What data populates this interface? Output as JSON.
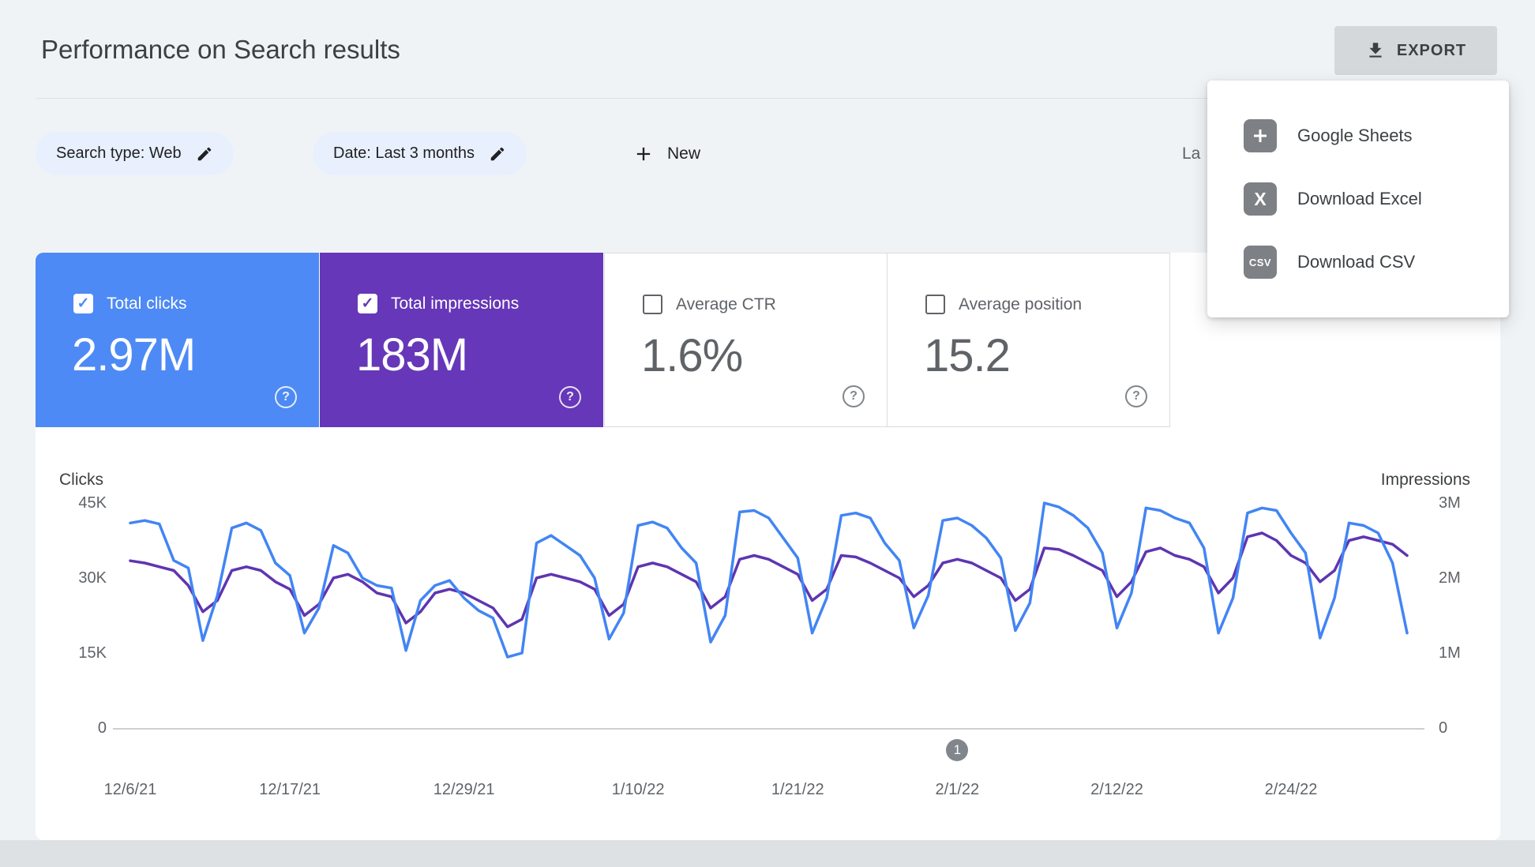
{
  "header": {
    "title": "Performance on Search results",
    "export_label": "EXPORT",
    "export_icon": "download-icon"
  },
  "export_menu": {
    "items": [
      {
        "label": "Google Sheets",
        "icon": "google-sheets-icon"
      },
      {
        "label": "Download Excel",
        "icon": "excel-icon"
      },
      {
        "label": "Download CSV",
        "icon": "csv-icon"
      }
    ]
  },
  "filters": {
    "search_type_chip": "Search type: Web",
    "date_chip": "Date: Last 3 months",
    "chip_edit_icon": "edit-pencil-icon",
    "new_label": "New",
    "new_icon": "plus-icon",
    "last_updated_partial": "La"
  },
  "metrics": [
    {
      "label": "Total clicks",
      "value": "2.97M",
      "checked": true,
      "color": "#4d8af5"
    },
    {
      "label": "Total impressions",
      "value": "183M",
      "checked": true,
      "color": "#6637b8"
    },
    {
      "label": "Average CTR",
      "value": "1.6%",
      "checked": false
    },
    {
      "label": "Average position",
      "value": "15.2",
      "checked": false
    }
  ],
  "chart_data": {
    "type": "line",
    "start_date": "12/6/21",
    "frequency": "daily",
    "left_axis": {
      "label": "Clicks",
      "ticks": [
        "45K",
        "30K",
        "15K",
        "0"
      ],
      "max": 45000,
      "min": 0
    },
    "right_axis": {
      "label": "Impressions",
      "ticks": [
        "3M",
        "2M",
        "1M",
        "0"
      ],
      "max": 3000000,
      "min": 0
    },
    "x_ticks": [
      {
        "label": "12/6/21",
        "index": 0
      },
      {
        "label": "12/17/21",
        "index": 11
      },
      {
        "label": "12/29/21",
        "index": 23
      },
      {
        "label": "1/10/22",
        "index": 35
      },
      {
        "label": "1/21/22",
        "index": 46
      },
      {
        "label": "2/1/22",
        "index": 57
      },
      {
        "label": "2/12/22",
        "index": 68
      },
      {
        "label": "2/24/22",
        "index": 80
      }
    ],
    "annotation": {
      "label": "1",
      "index": 57
    },
    "grid": "baseline-only",
    "legend_position": "none",
    "series": [
      {
        "name": "Clicks",
        "axis": "left",
        "color": "#4285f4",
        "values": [
          41000,
          41500,
          40800,
          33500,
          32000,
          17500,
          26500,
          40000,
          41000,
          39500,
          33000,
          30500,
          19000,
          24000,
          36500,
          35000,
          30000,
          28500,
          28000,
          15500,
          25500,
          28500,
          29500,
          26000,
          23500,
          22000,
          14200,
          15000,
          37000,
          38500,
          36500,
          34500,
          30000,
          17800,
          23000,
          40500,
          41200,
          40000,
          36000,
          33000,
          17200,
          22500,
          43200,
          43500,
          42000,
          38000,
          34000,
          19000,
          26000,
          42500,
          43000,
          42000,
          37000,
          33500,
          20000,
          26500,
          41500,
          42000,
          40500,
          38000,
          34000,
          19500,
          25000,
          45000,
          44200,
          42500,
          40000,
          35000,
          20000,
          27000,
          44000,
          43500,
          42000,
          41000,
          36000,
          19000,
          26000,
          43000,
          44000,
          43500,
          39000,
          35000,
          18000,
          26000,
          41000,
          40500,
          39000,
          33000,
          19000
        ]
      },
      {
        "name": "Impressions",
        "axis": "right",
        "color": "#5e35b1",
        "values": [
          2230000,
          2200000,
          2150000,
          2100000,
          1900000,
          1550000,
          1700000,
          2100000,
          2150000,
          2100000,
          1950000,
          1850000,
          1500000,
          1650000,
          2000000,
          2050000,
          1950000,
          1800000,
          1750000,
          1400000,
          1550000,
          1800000,
          1850000,
          1800000,
          1700000,
          1600000,
          1350000,
          1450000,
          2000000,
          2050000,
          2000000,
          1950000,
          1850000,
          1500000,
          1650000,
          2150000,
          2200000,
          2150000,
          2050000,
          1950000,
          1600000,
          1750000,
          2250000,
          2300000,
          2250000,
          2150000,
          2050000,
          1700000,
          1850000,
          2300000,
          2280000,
          2200000,
          2100000,
          2000000,
          1750000,
          1900000,
          2200000,
          2250000,
          2200000,
          2100000,
          2000000,
          1700000,
          1850000,
          2400000,
          2380000,
          2300000,
          2200000,
          2100000,
          1750000,
          1950000,
          2350000,
          2400000,
          2300000,
          2250000,
          2150000,
          1800000,
          2000000,
          2550000,
          2600000,
          2500000,
          2300000,
          2200000,
          1950000,
          2100000,
          2500000,
          2550000,
          2500000,
          2450000,
          2300000
        ]
      }
    ]
  }
}
